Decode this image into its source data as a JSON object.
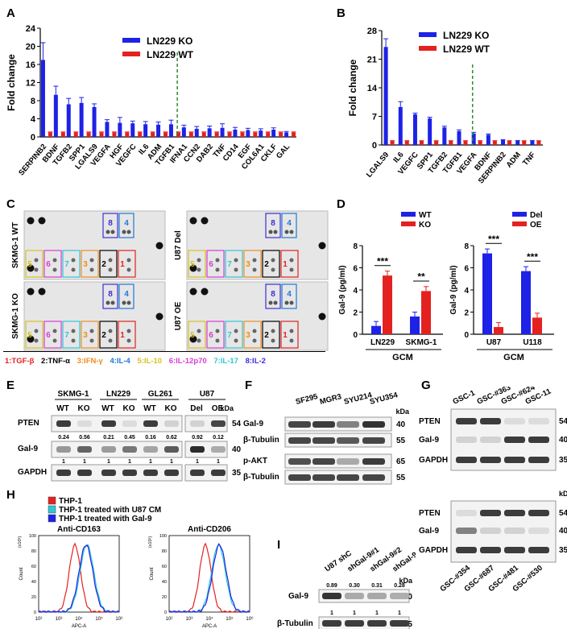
{
  "panel_labels": {
    "A": "A",
    "B": "B",
    "C": "C",
    "D": "D",
    "E": "E",
    "F": "F",
    "G": "G",
    "H": "H",
    "I": "I"
  },
  "colors": {
    "blue": "#1e22e6",
    "red": "#e3221f",
    "cyan": "#2ec6d6",
    "green": "#2e8b2e"
  },
  "chart_data": [
    {
      "id": "A",
      "type": "bar",
      "ylabel": "Fold change",
      "ylim": [
        0,
        24
      ],
      "yticks": [
        0,
        4,
        8,
        12,
        16,
        20,
        24
      ],
      "categories": [
        "SERPINB2",
        "BDNF",
        "TGFB2",
        "SPP1",
        "LGALS9",
        "VEGFA",
        "HGF",
        "VEGFC",
        "IL6",
        "ADM",
        "TGFB1",
        "IFNA1",
        "CCN2",
        "DAB2",
        "TNF",
        "CD14",
        "EGF",
        "COL6A1",
        "CKLF",
        "GAL"
      ],
      "series": [
        {
          "name": "LN229 KO",
          "values": [
            17,
            9.3,
            7.2,
            7.5,
            6.6,
            3.3,
            3.1,
            3.0,
            2.8,
            2.7,
            2.8,
            2.1,
            1.8,
            1.9,
            2.0,
            1.6,
            1.5,
            1.4,
            1.6,
            1.0
          ]
        },
        {
          "name": "LN229 WT",
          "values": [
            1,
            1,
            1,
            1,
            1,
            1,
            1,
            1,
            1,
            1,
            1,
            1,
            1,
            1,
            1,
            1,
            1,
            1,
            1,
            1
          ]
        }
      ],
      "legend_placement": "top"
    },
    {
      "id": "B",
      "type": "bar",
      "ylabel": "Fold change",
      "ylim": [
        0,
        28
      ],
      "yticks": [
        0,
        7,
        14,
        21,
        28
      ],
      "categories": [
        "LGALS9",
        "IL6",
        "VEGFC",
        "SPP1",
        "TGFB2",
        "TGFB1",
        "VEGFA",
        "BDNF",
        "SERPINB2",
        "ADM",
        "TNF"
      ],
      "series": [
        {
          "name": "LN229 KO",
          "values": [
            24,
            9.3,
            7.5,
            6.5,
            4.3,
            3.4,
            2.8,
            2.5,
            1.2,
            1.0,
            1.0
          ]
        },
        {
          "name": "LN229 WT",
          "values": [
            1,
            1,
            1,
            1,
            1,
            1,
            1,
            1,
            1,
            1,
            1
          ]
        }
      ],
      "legend_placement": "top"
    },
    {
      "id": "D1",
      "type": "bar",
      "ylabel": "Gal-9 (pg/ml)",
      "ylim": [
        0,
        8
      ],
      "yticks": [
        0,
        2,
        4,
        6,
        8
      ],
      "categories": [
        "LN229",
        "SKMG-1"
      ],
      "xgroup_label": "GCM",
      "series": [
        {
          "name": "WT",
          "values": [
            0.75,
            1.6
          ]
        },
        {
          "name": "KO",
          "values": [
            5.3,
            3.9
          ]
        }
      ],
      "significance": [
        "***",
        "**"
      ]
    },
    {
      "id": "D2",
      "type": "bar",
      "ylabel": "Gal-9 (pg/ml)",
      "ylim": [
        0,
        8
      ],
      "yticks": [
        0,
        2,
        4,
        6,
        8
      ],
      "categories": [
        "U87",
        "U118"
      ],
      "xgroup_label": "GCM",
      "series": [
        {
          "name": "Del",
          "values": [
            7.3,
            5.7
          ]
        },
        {
          "name": "OE",
          "values": [
            0.65,
            1.5
          ]
        }
      ],
      "significance": [
        "***",
        "***"
      ]
    },
    {
      "id": "H1",
      "type": "area",
      "title": "Anti-CD163",
      "xlabel": "APC-A",
      "ylabel": "Count",
      "yunit": "(x10¹)",
      "xticks": [
        "10²",
        "10³",
        "10⁴",
        "10⁵",
        "10⁶"
      ],
      "yticks": [
        "0",
        "20",
        "40",
        "60",
        "80",
        "100"
      ],
      "series": [
        {
          "name": "THP-1",
          "peak_log": 3.8
        },
        {
          "name": "THP-1 treated with U87 CM",
          "peak_log": 4.4
        },
        {
          "name": "THP-1 treated  with Gal-9",
          "peak_log": 4.35
        }
      ]
    },
    {
      "id": "H2",
      "type": "area",
      "title": "Anti-CD206",
      "xlabel": "APC-A",
      "ylabel": "Count",
      "yunit": "(x10¹)",
      "xticks": [
        "10²",
        "10³",
        "10⁴",
        "10⁵",
        "10⁶"
      ],
      "yticks": [
        "0",
        "20",
        "40",
        "60",
        "80",
        "100"
      ],
      "series": [
        {
          "name": "THP-1",
          "peak_log": 3.8
        },
        {
          "name": "THP-1 treated with U87 CM",
          "peak_log": 4.45
        },
        {
          "name": "THP-1 treated  with Gal-9",
          "peak_log": 4.5
        }
      ]
    }
  ],
  "panelA_legend": [
    "LN229 KO",
    "LN229 WT"
  ],
  "panelB_legend": [
    "LN229 KO",
    "LN229 WT"
  ],
  "panelC": {
    "labels": [
      "SKMG-1 WT",
      "U87 Del",
      "SKMG-1 KO",
      "U87 OE"
    ],
    "box_numbers": [
      "8",
      "4",
      "5",
      "6",
      "7",
      "3",
      "2",
      "1"
    ],
    "legend": [
      {
        "text": "1:TGF-β",
        "color": "#e3221f"
      },
      {
        "text": "2:TNF-α",
        "color": "#000000"
      },
      {
        "text": "3:IFN-γ",
        "color": "#f08c1e"
      },
      {
        "text": "4:IL-4",
        "color": "#1e7ad6"
      },
      {
        "text": "5:IL-10",
        "color": "#d6c21e"
      },
      {
        "text": "6:IL-12p70",
        "color": "#d63cd6"
      },
      {
        "text": "7:IL-17",
        "color": "#2ec6d6"
      },
      {
        "text": "8:IL-2",
        "color": "#3c2ed6"
      }
    ]
  },
  "panelD_legend1": [
    "WT",
    "KO"
  ],
  "panelD_legend2": [
    "Del",
    "OE"
  ],
  "panelE": {
    "groups": [
      "SKMG-1",
      "LN229",
      "GL261",
      "U87"
    ],
    "lanes": [
      "WT",
      "KO",
      "WT",
      "KO",
      "WT",
      "KO",
      "Del",
      "OE"
    ],
    "rows": [
      "PTEN",
      "Gal-9",
      "GAPDH"
    ],
    "kda_unit": "kDa",
    "kda": [
      "54",
      "40",
      "35"
    ],
    "gal9_values": [
      "0.24",
      "0.56",
      "0.21",
      "0.45",
      "0.16",
      "0.62",
      "0.92",
      "0.12"
    ],
    "gapdh_values": [
      "1",
      "1",
      "1",
      "1",
      "1",
      "1",
      "1",
      "1"
    ]
  },
  "panelF": {
    "lanes": [
      "SF295",
      "MGR3",
      "SYU214",
      "SYU354"
    ],
    "rows": [
      "Gal-9",
      "β-Tubulin",
      "p-AKT",
      "β-Tubulin"
    ],
    "kda_unit": "kDa",
    "kda": [
      "40",
      "55",
      "65",
      "55"
    ]
  },
  "panelG": {
    "top_lanes": [
      "GSC-1",
      "GSC-#363",
      "GSC-#624",
      "GSC-11"
    ],
    "bottom_lanes": [
      "GSC-#354",
      "GSC-#687",
      "GSC-#481",
      "GSC-#530"
    ],
    "rows": [
      "PTEN",
      "Gal-9",
      "GAPDH"
    ],
    "kda_unit": "kDa",
    "kda": [
      "54",
      "40",
      "35"
    ]
  },
  "panelH_legend": [
    "THP-1",
    "THP-1 treated with U87 CM",
    "THP-1 treated  with Gal-9"
  ],
  "panelI": {
    "lanes": [
      "U87 shC",
      "shGal-9#1",
      "shGal-9#2",
      "shGal-9#3"
    ],
    "rows": [
      "Gal-9",
      "β-Tubulin"
    ],
    "kda_unit": "kDa",
    "kda": [
      "40",
      "55"
    ],
    "gal9_values": [
      "0.89",
      "0.30",
      "0.31",
      "0.28"
    ],
    "tub_values": [
      "1",
      "1",
      "1",
      "1"
    ]
  }
}
